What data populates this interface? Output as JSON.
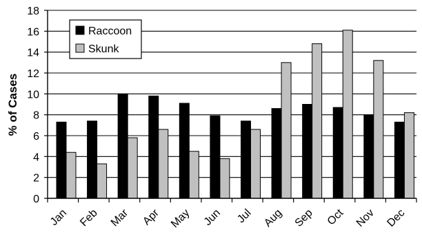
{
  "chart_data": {
    "type": "bar",
    "title": "",
    "xlabel": "",
    "ylabel": "% of Cases",
    "ylim": [
      0,
      18
    ],
    "yticks": [
      0,
      2,
      4,
      6,
      8,
      10,
      12,
      14,
      16,
      18
    ],
    "grid": "horizontal",
    "legend_position": "top-left",
    "categories": [
      "Jan",
      "Feb",
      "Mar",
      "Apr",
      "May",
      "Jun",
      "Jul",
      "Aug",
      "Sep",
      "Oct",
      "Nov",
      "Dec"
    ],
    "series": [
      {
        "name": "Raccoon",
        "color": "#000000",
        "values": [
          7.3,
          7.4,
          10.0,
          9.8,
          9.1,
          7.9,
          7.4,
          8.6,
          9.0,
          8.7,
          8.0,
          7.3
        ]
      },
      {
        "name": "Skunk",
        "color": "#c0c0c0",
        "values": [
          4.4,
          3.3,
          5.8,
          6.6,
          4.5,
          3.8,
          6.6,
          13.0,
          14.8,
          16.1,
          13.2,
          8.2
        ]
      }
    ]
  }
}
